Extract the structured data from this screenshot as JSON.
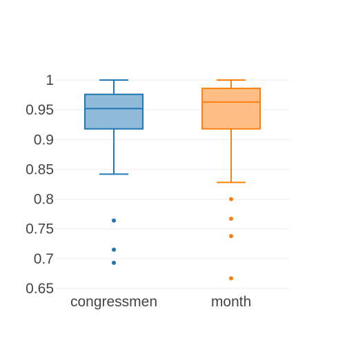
{
  "chart_data": {
    "type": "box",
    "title": "",
    "xlabel": "",
    "ylabel": "",
    "ylim": [
      0.65,
      1.0
    ],
    "yticks": [
      0.65,
      0.7,
      0.75,
      0.8,
      0.85,
      0.9,
      0.95,
      1
    ],
    "ytick_labels": [
      "0.65",
      "0.7",
      "0.75",
      "0.8",
      "0.85",
      "0.9",
      "0.95",
      "1"
    ],
    "grid": true,
    "legend": "none",
    "categories": [
      "congressmen",
      "month"
    ],
    "series": [
      {
        "category": "congressmen",
        "color": "#1f77b4",
        "fill": "#8fbbd9",
        "whisker_low": 0.842,
        "q1": 0.918,
        "median": 0.952,
        "q3": 0.976,
        "whisker_high": 1.0,
        "outliers": [
          0.764,
          0.715,
          0.693
        ]
      },
      {
        "category": "month",
        "color": "#ff7f0e",
        "fill": "#ffbf87",
        "whisker_low": 0.828,
        "q1": 0.918,
        "median": 0.963,
        "q3": 0.986,
        "whisker_high": 1.0,
        "outliers": [
          0.8,
          0.767,
          0.738,
          0.667
        ]
      }
    ]
  }
}
